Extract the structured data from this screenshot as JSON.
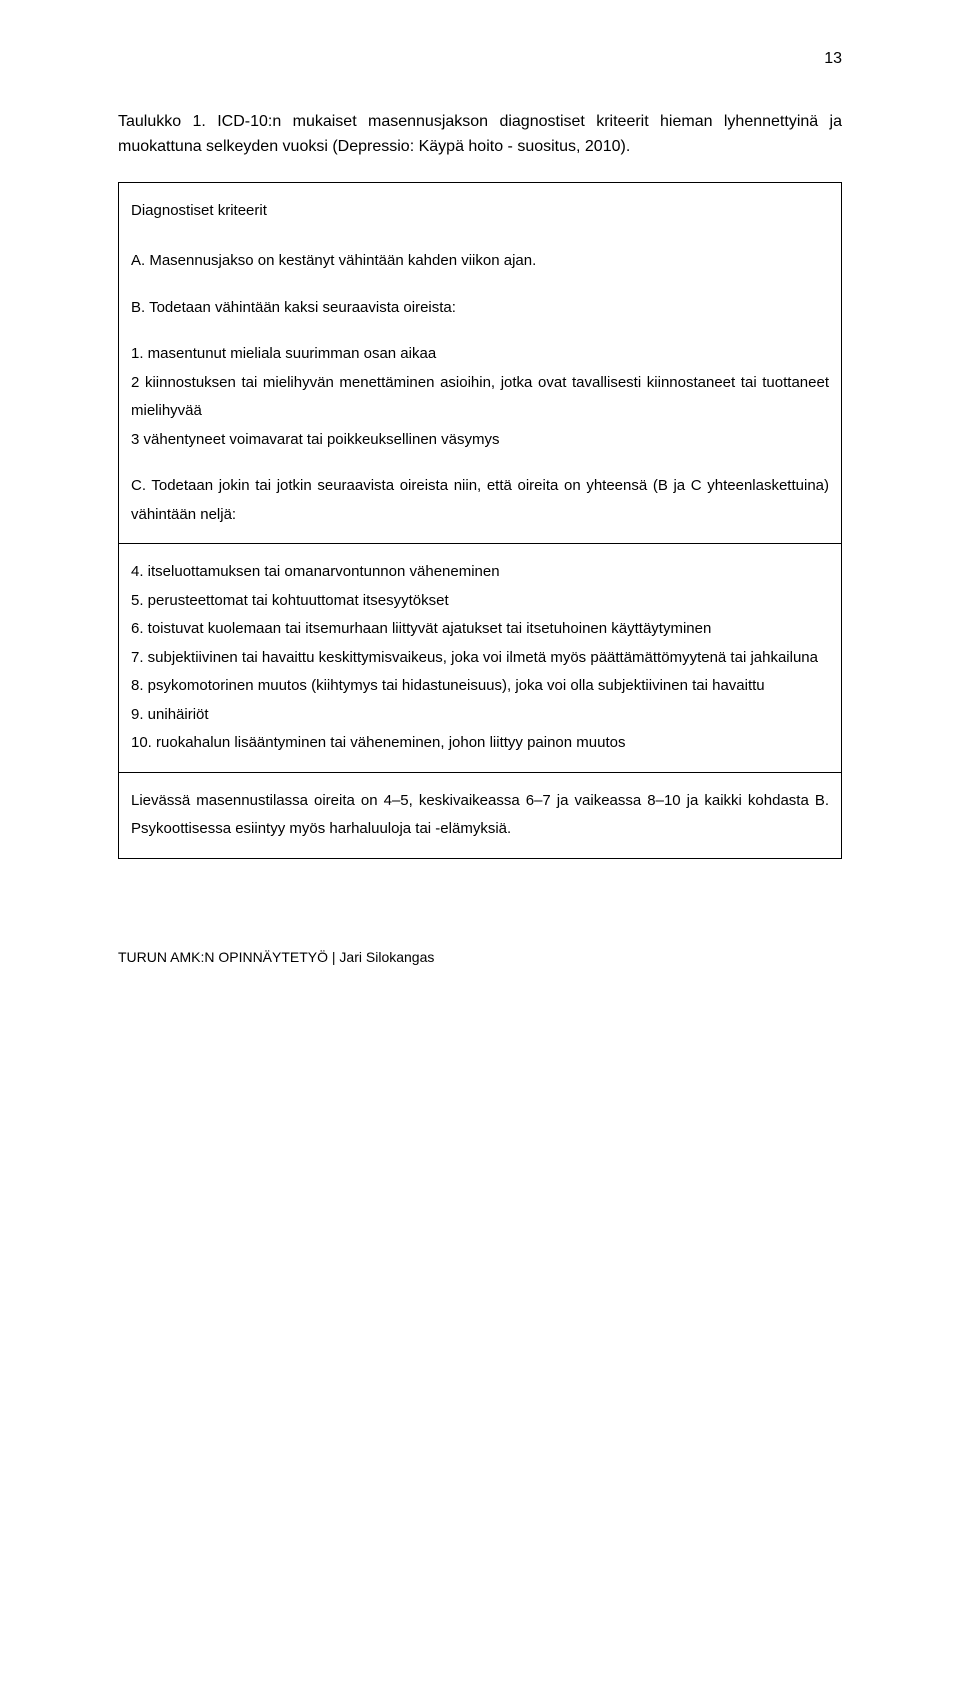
{
  "page_number": "13",
  "intro": "Taulukko 1. ICD-10:n mukaiset masennusjakson diagnostiset kriteerit hieman lyhennettyinä ja muokattuna selkeyden vuoksi (Depressio: Käypä hoito - suositus, 2010).",
  "table": {
    "cell1": {
      "heading": "Diagnostiset kriteerit",
      "a": "A. Masennusjakso on kestänyt vähintään kahden viikon ajan.",
      "b": "B. Todetaan vähintään kaksi seuraavista oireista:",
      "item1": "1. masentunut mieliala suurimman osan aikaa",
      "item2": "2 kiinnostuksen tai mielihyvän menettäminen asioihin, jotka ovat tavallisesti kiinnostaneet tai tuottaneet mielihyvää",
      "item3": "3 vähentyneet voimavarat tai poikkeuksellinen väsymys",
      "c": "C. Todetaan jokin tai jotkin seuraavista oireista niin, että oireita on yhteensä (B ja C yhteenlaskettuina) vähintään neljä:"
    },
    "cell2": {
      "item4": "4. itseluottamuksen tai omanarvontunnon väheneminen",
      "item5": "5. perusteettomat tai kohtuuttomat itsesyytökset",
      "item6": "6. toistuvat kuolemaan tai itsemurhaan liittyvät ajatukset tai itsetuhoinen käyttäytyminen",
      "item7": "7. subjektiivinen tai havaittu keskittymisvaikeus, joka voi ilmetä myös päättämättömyytenä tai jahkailuna",
      "item8": "8. psykomotorinen muutos (kiihtymys tai hidastuneisuus), joka voi olla subjektiivinen tai havaittu",
      "item9": "9. unihäiriöt",
      "item10": "10. ruokahalun lisääntyminen tai väheneminen, johon liittyy painon muutos"
    },
    "cell3": {
      "summary": "Lievässä masennustilassa oireita on 4–5, keskivaikeassa 6–7 ja vaikeassa 8–10 ja kaikki kohdasta B. Psykoottisessa esiintyy myös harhaluuloja tai -elämyksiä."
    }
  },
  "footer": "TURUN AMK:N OPINNÄYTETYÖ | Jari Silokangas"
}
